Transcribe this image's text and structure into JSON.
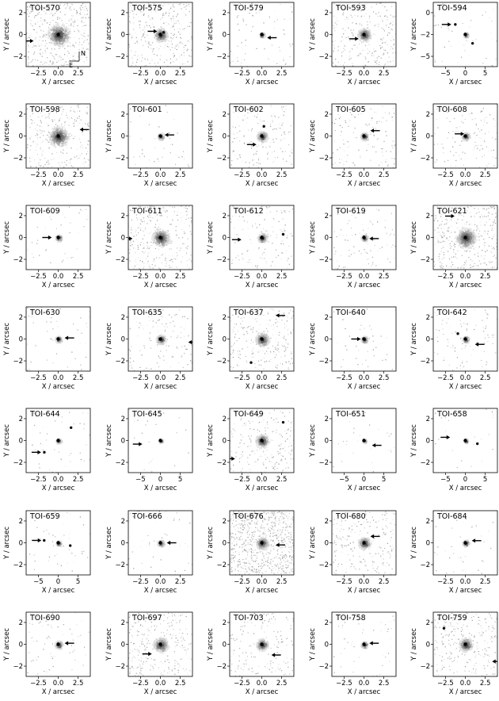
{
  "figure": {
    "x_axis_label": "X / arcsec",
    "y_axis_label": "Y / arcsec",
    "compass": {
      "north": "N",
      "east": "E"
    }
  },
  "panels": [
    {
      "title": "TOI-570",
      "range": 3,
      "xticks": [
        "−2.5",
        "0.0",
        "2.5"
      ],
      "yticks": [
        "2",
        "0",
        "−2"
      ],
      "noise": 0.5,
      "core": 1.6,
      "comps": [],
      "arrow": {
        "side": "left",
        "x": -2.3,
        "y": -0.6
      },
      "compass": true
    },
    {
      "title": "TOI-575",
      "range": 3,
      "xticks": [
        "−2.5",
        "0.0",
        "2.5"
      ],
      "yticks": [
        "2",
        "0",
        "−2"
      ],
      "noise": 0.35,
      "core": 1.0,
      "comps": [
        {
          "x": 0.3,
          "y": 0.2
        }
      ],
      "arrow": {
        "side": "left",
        "x": -0.3,
        "y": 0.3
      }
    },
    {
      "title": "TOI-579",
      "range": 3,
      "xticks": [
        "−2.5",
        "0.0",
        "2.5"
      ],
      "yticks": [
        "2",
        "0",
        "−2"
      ],
      "noise": 0.08,
      "core": 0.4,
      "comps": [],
      "arrow": {
        "side": "right",
        "x": 0.5,
        "y": -0.3
      }
    },
    {
      "title": "TOI-593",
      "range": 3,
      "xticks": [
        "−2.5",
        "0.0",
        "2.5"
      ],
      "yticks": [
        "2",
        "0",
        "−2"
      ],
      "noise": 0.3,
      "core": 1.0,
      "comps": [],
      "arrow": {
        "side": "left",
        "x": -0.5,
        "y": -0.4
      }
    },
    {
      "title": "TOI-594",
      "range": 8,
      "xticks": [
        "−5",
        "0",
        "5"
      ],
      "yticks": [
        "0",
        "−2",
        "−5"
      ],
      "noise": 0.05,
      "core": 0.4,
      "comps": [
        {
          "x": -2.5,
          "y": 2.5
        },
        {
          "x": 1.8,
          "y": -2.2
        }
      ],
      "arrow": {
        "side": "left",
        "x": -3.5,
        "y": 2.5
      }
    },
    {
      "title": "TOI-598",
      "range": 3,
      "xticks": [
        "−2.5",
        "0.0",
        "2.5"
      ],
      "yticks": [
        "2",
        "0",
        "−2"
      ],
      "noise": 0.3,
      "core": 1.5,
      "comps": [],
      "arrow": {
        "side": "right",
        "x": 2.0,
        "y": 0.6
      }
    },
    {
      "title": "TOI-601",
      "range": 3,
      "xticks": [
        "−2.5",
        "0.0",
        "2.5"
      ],
      "yticks": [
        "2",
        "0",
        "−2"
      ],
      "noise": 0.05,
      "core": 0.5,
      "comps": [],
      "arrow": {
        "side": "right",
        "x": 0.4,
        "y": 0.1
      }
    },
    {
      "title": "TOI-602",
      "range": 3,
      "xticks": [
        "−2.5",
        "0.0",
        "2.5"
      ],
      "yticks": [
        "2",
        "0",
        "−2"
      ],
      "noise": 0.2,
      "core": 0.8,
      "comps": [
        {
          "x": 0.2,
          "y": 0.9
        }
      ],
      "arrow": {
        "side": "left",
        "x": -0.5,
        "y": -0.8
      }
    },
    {
      "title": "TOI-605",
      "range": 3,
      "xticks": [
        "−2.5",
        "0.0",
        "2.5"
      ],
      "yticks": [
        "2",
        "0",
        "−2"
      ],
      "noise": 0.15,
      "core": 0.6,
      "comps": [],
      "arrow": {
        "side": "right",
        "x": 0.6,
        "y": 0.5
      }
    },
    {
      "title": "TOI-608",
      "range": 3,
      "xticks": [
        "−2.5",
        "0.0",
        "2.5"
      ],
      "yticks": [
        "2",
        "0",
        "−2"
      ],
      "noise": 0.15,
      "core": 0.6,
      "comps": [],
      "arrow": {
        "side": "left",
        "x": -0.1,
        "y": 0.2
      }
    },
    {
      "title": "TOI-609",
      "range": 3,
      "xticks": [
        "−2.5",
        "0.0",
        "2.5"
      ],
      "yticks": [
        "2",
        "0",
        "−2"
      ],
      "noise": 0.05,
      "core": 0.5,
      "comps": [],
      "arrow": {
        "side": "left",
        "x": -0.6,
        "y": 0.0
      }
    },
    {
      "title": "TOI-611",
      "range": 3,
      "xticks": [
        "−2.5",
        "0.0",
        "2.5"
      ],
      "yticks": [
        "2",
        "0",
        "−2"
      ],
      "noise": 0.35,
      "core": 1.3,
      "comps": [],
      "arrow": {
        "side": "left",
        "x": -2.6,
        "y": -0.1
      }
    },
    {
      "title": "TOI-612",
      "range": 3,
      "xticks": [
        "−2.5",
        "0.0",
        "2.5"
      ],
      "yticks": [
        "2",
        "0",
        "−2"
      ],
      "noise": 0.15,
      "core": 0.7,
      "comps": [
        {
          "x": 2.0,
          "y": 0.3
        }
      ],
      "arrow": {
        "side": "left",
        "x": -1.9,
        "y": -0.2
      }
    },
    {
      "title": "TOI-619",
      "range": 3,
      "xticks": [
        "−2.5",
        "0.0",
        "2.5"
      ],
      "yticks": [
        "2",
        "0",
        "−2"
      ],
      "noise": 0.1,
      "core": 0.5,
      "comps": [],
      "arrow": {
        "side": "right",
        "x": 0.5,
        "y": -0.1
      }
    },
    {
      "title": "TOI-621",
      "range": 3,
      "xticks": [
        "−2.5",
        "0.0",
        "2.5"
      ],
      "yticks": [
        "2",
        "0",
        "−2"
      ],
      "noise": 0.4,
      "core": 1.5,
      "comps": [],
      "arrow": {
        "side": "left",
        "x": -1.0,
        "y": 2.0
      }
    },
    {
      "title": "TOI-630",
      "range": 3,
      "xticks": [
        "−2.5",
        "0.0",
        "2.5"
      ],
      "yticks": [
        "2",
        "0",
        "−2"
      ],
      "noise": 0.05,
      "core": 0.5,
      "comps": [],
      "arrow": {
        "side": "right",
        "x": 0.6,
        "y": 0.1
      }
    },
    {
      "title": "TOI-635",
      "range": 3,
      "xticks": [
        "−2.5",
        "0.0",
        "2.5"
      ],
      "yticks": [
        "2",
        "0",
        "−2"
      ],
      "noise": 0.15,
      "core": 0.7,
      "comps": [],
      "arrow": {
        "side": "right",
        "x": 2.6,
        "y": -0.3
      }
    },
    {
      "title": "TOI-637",
      "range": 3,
      "xticks": [
        "−2.5",
        "0.0",
        "2.5"
      ],
      "yticks": [
        "2",
        "0",
        "−2"
      ],
      "noise": 0.25,
      "core": 1.0,
      "comps": [
        {
          "x": -1.0,
          "y": -2.2
        }
      ],
      "arrow": {
        "side": "right",
        "x": 1.3,
        "y": 2.2
      }
    },
    {
      "title": "TOI-640",
      "range": 3,
      "xticks": [
        "−2.5",
        "0.0",
        "2.5"
      ],
      "yticks": [
        "2",
        "0",
        "−2"
      ],
      "noise": 0.05,
      "core": 0.5,
      "comps": [],
      "arrow": {
        "side": "left",
        "x": -0.3,
        "y": 0.0
      }
    },
    {
      "title": "TOI-642",
      "range": 3,
      "xticks": [
        "−2.5",
        "0.0",
        "2.5"
      ],
      "yticks": [
        "2",
        "0",
        "−2"
      ],
      "noise": 0.12,
      "core": 0.5,
      "comps": [
        {
          "x": -0.7,
          "y": 0.5
        }
      ],
      "arrow": {
        "side": "right",
        "x": 0.9,
        "y": -0.5
      }
    },
    {
      "title": "TOI-644",
      "range": 3,
      "xticks": [
        "−2.5",
        "0.0",
        "2.5"
      ],
      "yticks": [
        "2",
        "0",
        "−2"
      ],
      "noise": 0.05,
      "core": 0.4,
      "comps": [
        {
          "x": 1.2,
          "y": 1.2
        },
        {
          "x": -1.3,
          "y": -1.1
        }
      ],
      "arrow": {
        "side": "left",
        "x": -1.6,
        "y": -1.1
      }
    },
    {
      "title": "TOI-645",
      "range": 8,
      "xticks": [
        "−5",
        "0",
        "5"
      ],
      "yticks": [
        "2",
        "0",
        "−2"
      ],
      "noise": 0.03,
      "core": 0.3,
      "comps": [],
      "arrow": {
        "side": "left",
        "x": -4.5,
        "y": -0.9
      }
    },
    {
      "title": "TOI-649",
      "range": 3,
      "xticks": [
        "−2.5",
        "0.0",
        "2.5"
      ],
      "yticks": [
        "2",
        "0",
        "−2"
      ],
      "noise": 0.25,
      "core": 1.0,
      "comps": [
        {
          "x": 2.0,
          "y": 1.7
        }
      ],
      "arrow": {
        "side": "left",
        "x": -2.5,
        "y": -1.7
      }
    },
    {
      "title": "TOI-651",
      "range": 8,
      "xticks": [
        "−5",
        "0",
        "5"
      ],
      "yticks": [
        "2",
        "0",
        "−2"
      ],
      "noise": 0.03,
      "core": 0.3,
      "comps": [],
      "arrow": {
        "side": "right",
        "x": 2.0,
        "y": -1.2
      }
    },
    {
      "title": "TOI-658",
      "range": 8,
      "xticks": [
        "−5",
        "0",
        "5"
      ],
      "yticks": [
        "2",
        "0",
        "−2"
      ],
      "noise": 0.03,
      "core": 0.3,
      "comps": [
        {
          "x": 3.0,
          "y": -0.8
        }
      ],
      "arrow": {
        "side": "left",
        "x": -3.8,
        "y": 0.8
      }
    },
    {
      "title": "TOI-659",
      "range": 8,
      "xticks": [
        "−5",
        "0",
        "5"
      ],
      "yticks": [
        "2",
        "0",
        "−2"
      ],
      "noise": 0.05,
      "core": 0.4,
      "comps": [
        {
          "x": -3.5,
          "y": 0.6
        },
        {
          "x": 3.0,
          "y": -0.7
        }
      ],
      "arrow": {
        "side": "left",
        "x": -4.2,
        "y": 0.6
      }
    },
    {
      "title": "TOI-666",
      "range": 3,
      "xticks": [
        "−2.5",
        "0.0",
        "2.5"
      ],
      "yticks": [
        "2",
        "0",
        "−2"
      ],
      "noise": 0.05,
      "core": 0.5,
      "comps": [],
      "arrow": {
        "side": "right",
        "x": 0.6,
        "y": 0.0
      }
    },
    {
      "title": "TOI-676",
      "range": 3,
      "xticks": [
        "−2.5",
        "0.0",
        "2.5"
      ],
      "yticks": [
        "2",
        "0",
        "−2"
      ],
      "noise": 0.9,
      "core": 0.9,
      "comps": [],
      "arrow": {
        "side": "right",
        "x": 1.3,
        "y": -0.2
      }
    },
    {
      "title": "TOI-680",
      "range": 3,
      "xticks": [
        "−2.5",
        "0.0",
        "2.5"
      ],
      "yticks": [
        "2",
        "0",
        "−2"
      ],
      "noise": 0.25,
      "core": 0.9,
      "comps": [],
      "arrow": {
        "side": "right",
        "x": 0.6,
        "y": 0.6
      }
    },
    {
      "title": "TOI-684",
      "range": 3,
      "xticks": [
        "−2.5",
        "0.0",
        "2.5"
      ],
      "yticks": [
        "2",
        "0",
        "−2"
      ],
      "noise": 0.05,
      "core": 0.5,
      "comps": [],
      "arrow": {
        "side": "right",
        "x": 0.6,
        "y": 0.2
      }
    },
    {
      "title": "TOI-690",
      "range": 3,
      "xticks": [
        "−2.5",
        "0.0",
        "2.5"
      ],
      "yticks": [
        "2",
        "0",
        "−2"
      ],
      "noise": 0.08,
      "core": 0.6,
      "comps": [],
      "arrow": {
        "side": "right",
        "x": 0.6,
        "y": 0.1
      }
    },
    {
      "title": "TOI-697",
      "range": 3,
      "xticks": [
        "−2.5",
        "0.0",
        "2.5"
      ],
      "yticks": [
        "2",
        "0",
        "−2"
      ],
      "noise": 0.3,
      "core": 1.1,
      "comps": [],
      "arrow": {
        "side": "left",
        "x": -0.8,
        "y": -0.9
      }
    },
    {
      "title": "TOI-703",
      "range": 3,
      "xticks": [
        "−2.5",
        "0.0",
        "2.5"
      ],
      "yticks": [
        "2",
        "0",
        "−2"
      ],
      "noise": 0.2,
      "core": 0.9,
      "comps": [],
      "arrow": {
        "side": "right",
        "x": 0.9,
        "y": -1.0
      }
    },
    {
      "title": "TOI-758",
      "range": 3,
      "xticks": [
        "−2.5",
        "0.0",
        "2.5"
      ],
      "yticks": [
        "2",
        "0",
        "−2"
      ],
      "noise": 0.05,
      "core": 0.5,
      "comps": [],
      "arrow": {
        "side": "right",
        "x": 0.5,
        "y": 0.1
      }
    },
    {
      "title": "TOI-759",
      "range": 3,
      "xticks": [
        "−2.5",
        "0.0",
        "2.5"
      ],
      "yticks": [
        "2",
        "0",
        "−2"
      ],
      "noise": 0.3,
      "core": 1.0,
      "comps": [
        {
          "x": -2.0,
          "y": 1.5
        }
      ],
      "arrow": {
        "side": "right",
        "x": 2.5,
        "y": -1.6
      }
    }
  ]
}
